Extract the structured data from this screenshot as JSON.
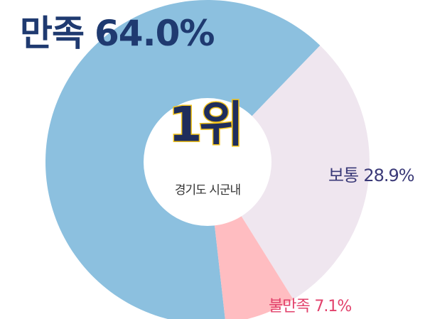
{
  "chart_data": {
    "type": "donut",
    "categories": [
      "만족",
      "보통",
      "불만족"
    ],
    "values": [
      64.0,
      28.9,
      7.1
    ],
    "value_labels": [
      "64.0%",
      "28.9%",
      "7.1%"
    ],
    "colors": [
      "#8cc0df",
      "#efe6ef",
      "#ffbdc1"
    ],
    "label_colors": [
      "#1f3a70",
      "#3b3a78",
      "#e2416b"
    ],
    "center_title": "1위",
    "center_subtitle": "경기도 시군내"
  }
}
